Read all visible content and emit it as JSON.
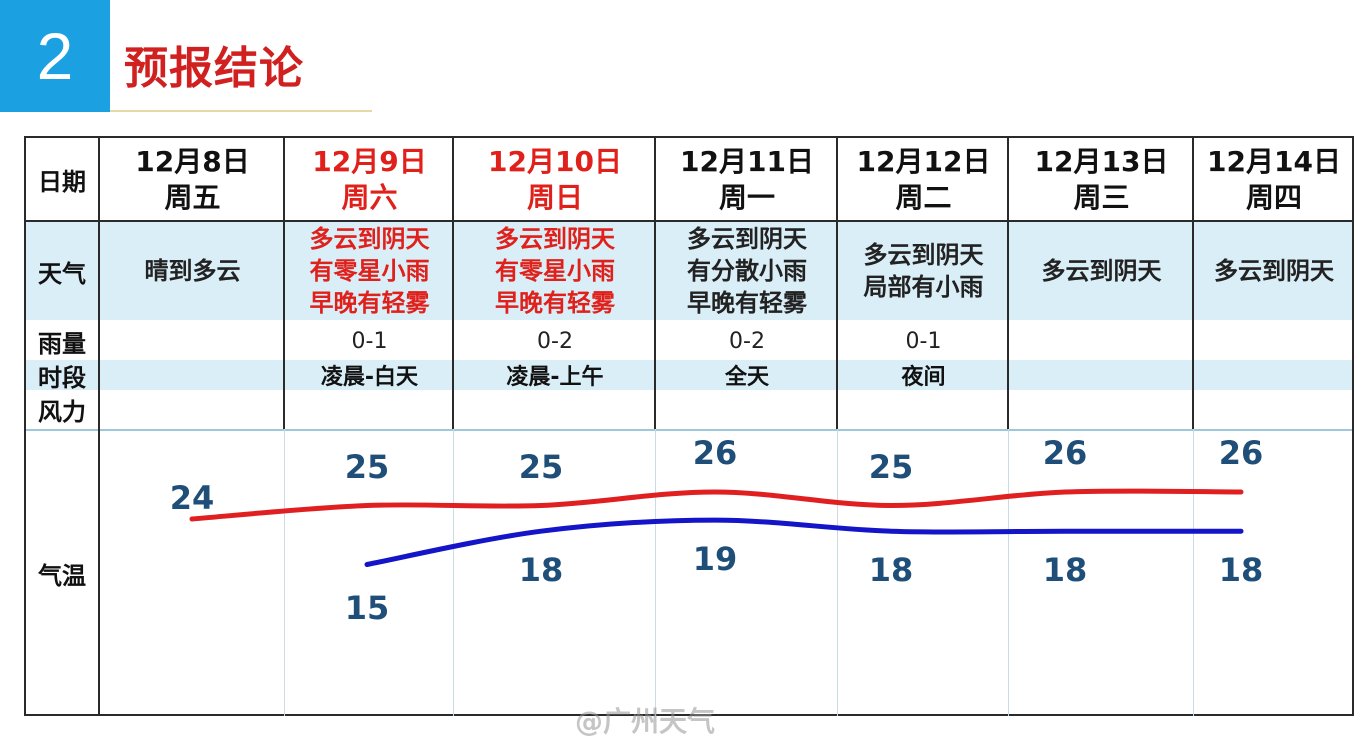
{
  "header": {
    "number": "2",
    "title": "预报结论"
  },
  "row_labels": {
    "date": "日期",
    "weather": "天气",
    "rain": "雨量",
    "period": "时段",
    "wind": "风力",
    "temp": "气温"
  },
  "days": [
    {
      "date": "12月8日",
      "weekday": "周五",
      "weather": [
        "晴到多云"
      ],
      "rain": "",
      "period": "",
      "highlight": false
    },
    {
      "date": "12月9日",
      "weekday": "周六",
      "weather": [
        "多云到阴天",
        "有零星小雨",
        "早晚有轻雾"
      ],
      "rain": "0-1",
      "period": "凌晨-白天",
      "highlight": true
    },
    {
      "date": "12月10日",
      "weekday": "周日",
      "weather": [
        "多云到阴天",
        "有零星小雨",
        "早晚有轻雾"
      ],
      "rain": "0-2",
      "period": "凌晨-上午",
      "highlight": true
    },
    {
      "date": "12月11日",
      "weekday": "周一",
      "weather": [
        "多云到阴天",
        "有分散小雨",
        "早晚有轻雾"
      ],
      "rain": "0-2",
      "period": "全天",
      "highlight": false
    },
    {
      "date": "12月12日",
      "weekday": "周二",
      "weather": [
        "多云到阴天",
        "局部有小雨"
      ],
      "rain": "0-1",
      "period": "夜间",
      "highlight": false
    },
    {
      "date": "12月13日",
      "weekday": "周三",
      "weather": [
        "多云到阴天"
      ],
      "rain": "",
      "period": "",
      "highlight": false
    },
    {
      "date": "12月14日",
      "weekday": "周四",
      "weather": [
        "多云到阴天"
      ],
      "rain": "",
      "period": "",
      "highlight": false
    }
  ],
  "chart_data": {
    "type": "line",
    "categories": [
      "12月8日",
      "12月9日",
      "12月10日",
      "12月11日",
      "12月12日",
      "12月13日",
      "12月14日"
    ],
    "series": [
      {
        "values": [
          24,
          25,
          25,
          26,
          25,
          26,
          26
        ],
        "color": "#e02020"
      },
      {
        "values": [
          null,
          15,
          18,
          19,
          18,
          18,
          18
        ],
        "color": "#1414c8"
      }
    ],
    "labels_high": [
      "24",
      "25",
      "25",
      "26",
      "25",
      "26",
      "26"
    ],
    "labels_low": [
      "",
      "15",
      "18",
      "19",
      "18",
      "18",
      "18"
    ],
    "grid": false
  },
  "colors": {
    "accent": "#1BA1E2",
    "title": "#d0201f",
    "highlight": "#e0201a",
    "band": "#daeef7",
    "temp_label": "#1f4e79"
  },
  "watermark": "@广州天气"
}
